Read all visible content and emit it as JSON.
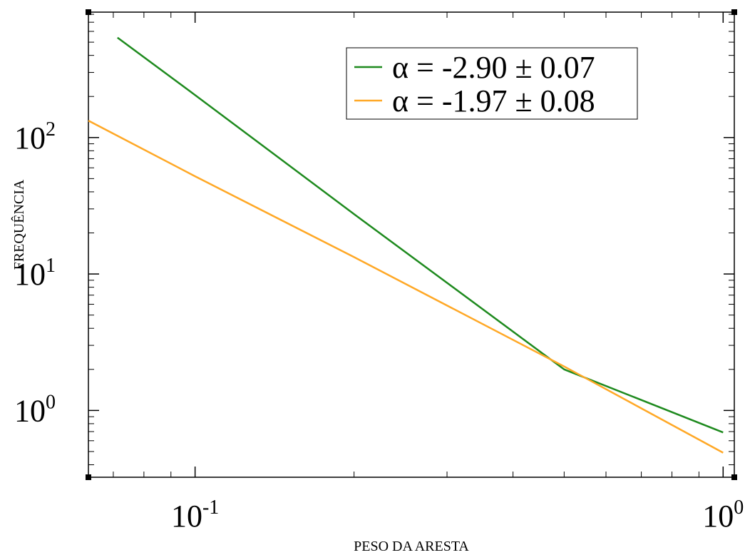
{
  "chart_data": {
    "type": "line",
    "xlabel": "PESO DA ARESTA",
    "ylabel": "FREQUÊNCIA",
    "xscale": "log",
    "yscale": "log",
    "xlim": [
      0.0628,
      1.05
    ],
    "ylim": [
      0.324,
      830
    ],
    "grid": false,
    "legend_position": "top-right",
    "x_ticks": [
      {
        "value": 0.1,
        "base": "10",
        "exp": "-1"
      },
      {
        "value": 1,
        "base": "10",
        "exp": "0"
      }
    ],
    "y_ticks": [
      {
        "value": 1,
        "base": "10",
        "exp": "0"
      },
      {
        "value": 10,
        "base": "10",
        "exp": "1"
      },
      {
        "value": 100,
        "base": "10",
        "exp": "2"
      }
    ],
    "series": [
      {
        "name": "α = -2.90 ± 0.07",
        "color": "#1e8a1e",
        "x": [
          0.0713,
          0.1,
          0.2,
          0.5,
          1.0
        ],
        "y": [
          540,
          205,
          27.5,
          2.0,
          0.69
        ]
      },
      {
        "name": "α = -1.97 ± 0.08",
        "color": "#ffa826",
        "x": [
          0.0628,
          0.1,
          0.2,
          0.5,
          1.0
        ],
        "y": [
          133,
          52,
          13.3,
          2.1,
          0.49
        ]
      }
    ]
  }
}
